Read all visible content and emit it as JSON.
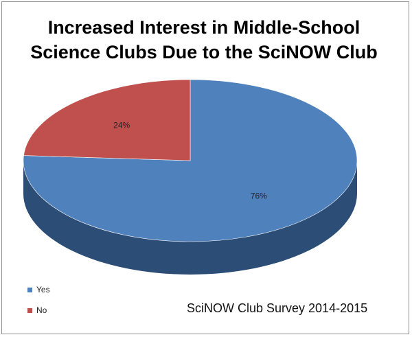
{
  "chart_data": {
    "type": "pie",
    "title_lines": [
      "Increased Interest in Middle-School",
      "Science Clubs Due to the SciNOW Club"
    ],
    "categories": [
      "Yes",
      "No"
    ],
    "values": [
      76,
      24
    ],
    "data_labels": [
      "76%",
      "24%"
    ],
    "colors": [
      "#4f81bd",
      "#c0504d"
    ],
    "side_colors": [
      "#2c4d75",
      "#7a302e"
    ],
    "legend": [
      {
        "label": "Yes",
        "color": "#4f81bd"
      },
      {
        "label": "No",
        "color": "#c0504d"
      }
    ],
    "legend_position": "bottom-left",
    "style": "3d-pie",
    "footnote": "SciNOW Club Survey 2014-2015"
  }
}
